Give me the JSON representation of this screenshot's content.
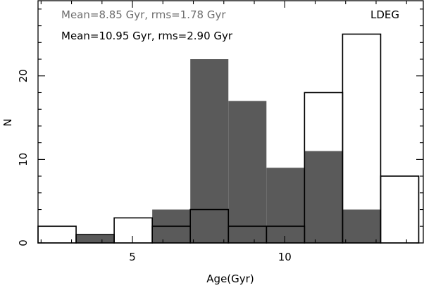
{
  "chart_data": {
    "type": "bar",
    "title": "",
    "xlabel": "Age(Gyr)",
    "ylabel": "N",
    "xlim": [
      1.9,
      14.55
    ],
    "ylim": [
      0,
      29
    ],
    "xticks_major": [
      5,
      10
    ],
    "yticks_major": [
      0,
      10,
      20
    ],
    "xtick_labels": [
      "5",
      "10"
    ],
    "ytick_labels": [
      "0",
      "10",
      "20"
    ],
    "grid": false,
    "annotations": {
      "gray_stats": "Mean=8.85 Gyr, rms=1.78 Gyr",
      "black_stats": "Mean=10.95 Gyr, rms=2.90 Gyr",
      "sample": "LDEG"
    },
    "bin_edges": [
      1.9,
      3.15,
      4.4,
      5.65,
      6.9,
      8.15,
      9.4,
      10.65,
      11.9,
      13.15,
      14.4
    ],
    "series": [
      {
        "style": "filled",
        "color": "#5a5a5a",
        "values": [
          0,
          1,
          0,
          4,
          22,
          17,
          9,
          11,
          4,
          0
        ]
      },
      {
        "style": "outline",
        "color": "#000000",
        "values": [
          2,
          1,
          3,
          2,
          4,
          2,
          2,
          18,
          25,
          8
        ]
      }
    ]
  }
}
